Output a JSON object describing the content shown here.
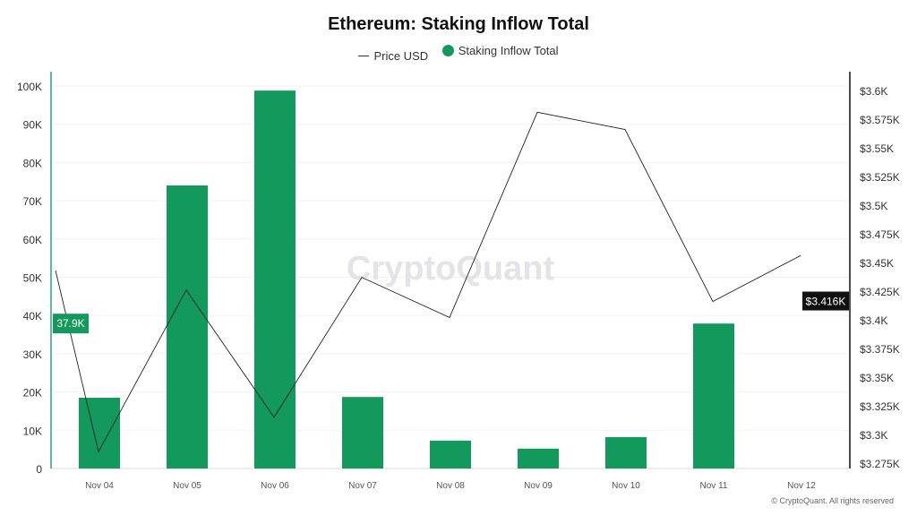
{
  "chart_data": {
    "type": "bar",
    "title": "Ethereum: Staking Inflow Total",
    "categories": [
      "Nov 04",
      "Nov 05",
      "Nov 06",
      "Nov 07",
      "Nov 08",
      "Nov 09",
      "Nov 10",
      "Nov 11",
      "Nov 12"
    ],
    "series": [
      {
        "name": "Staking Inflow Total",
        "type": "bar",
        "axis": "left",
        "color": "#14995c",
        "values": [
          18500,
          74000,
          98800,
          18700,
          7300,
          5200,
          8200,
          37900,
          null
        ]
      },
      {
        "name": "Price USD",
        "type": "line",
        "axis": "right",
        "color": "#222222",
        "leading_value": 3443,
        "values": [
          3285,
          3426,
          3315,
          3437,
          3402,
          3581,
          3566,
          3416,
          3456
        ]
      }
    ],
    "left_axis": {
      "ylim": [
        0,
        100000
      ],
      "ticks": [
        0,
        10000,
        20000,
        30000,
        40000,
        50000,
        60000,
        70000,
        80000,
        90000,
        100000
      ],
      "tick_labels": [
        "0",
        "10K",
        "20K",
        "30K",
        "40K",
        "50K",
        "60K",
        "70K",
        "80K",
        "90K",
        "100K"
      ],
      "current_label": "37.9K"
    },
    "right_axis": {
      "ylim": [
        3275,
        3600
      ],
      "ticks": [
        3275,
        3300,
        3325,
        3350,
        3375,
        3400,
        3425,
        3450,
        3475,
        3500,
        3525,
        3550,
        3575,
        3600
      ],
      "tick_labels": [
        "$3.275K",
        "$3.3K",
        "$3.325K",
        "$3.35K",
        "$3.375K",
        "$3.4K",
        "$3.425K",
        "$3.45K",
        "$3.475K",
        "$3.5K",
        "$3.525K",
        "$3.55K",
        "$3.575K",
        "$3.6K"
      ],
      "current_label": "$3.416K"
    },
    "grid": true,
    "legend_placement": "top-center"
  },
  "watermark": "CryptoQuant",
  "copyright": "© CryptoQuant. All rights reserved"
}
